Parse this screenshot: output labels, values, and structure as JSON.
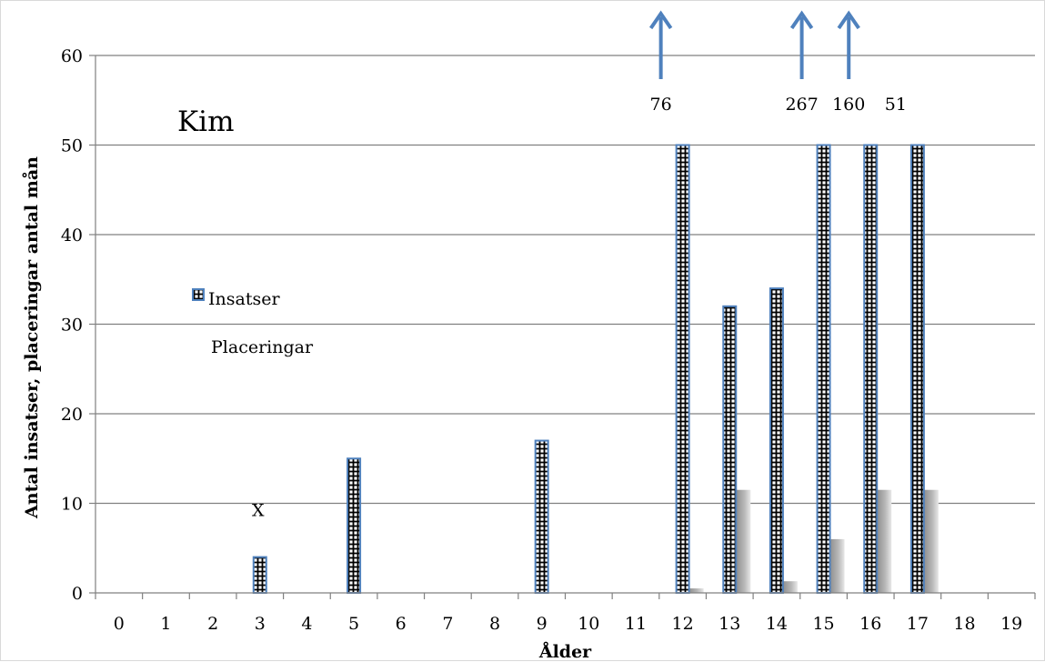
{
  "chart_data": {
    "type": "bar",
    "title": "Kim",
    "xlabel": "Ålder",
    "ylabel": "Antal insatser, placeringar antal mån",
    "x": [
      0,
      1,
      2,
      3,
      4,
      5,
      6,
      7,
      8,
      9,
      10,
      11,
      12,
      13,
      14,
      15,
      16,
      17,
      18,
      19
    ],
    "ylim": [
      0,
      60
    ],
    "yticks": [
      0,
      10,
      20,
      30,
      40,
      50,
      60
    ],
    "grid": true,
    "legend_position": "left",
    "series": [
      {
        "name": "Insatser",
        "style": "hatched",
        "values": [
          0,
          0,
          0,
          4,
          0,
          15,
          0,
          0,
          0,
          17,
          0,
          0,
          50,
          32,
          34,
          50,
          50,
          50,
          0,
          0
        ]
      },
      {
        "name": "Placeringar",
        "style": "shadow",
        "values": [
          0,
          0,
          0,
          0,
          0,
          0,
          0,
          0,
          0,
          0,
          0,
          0,
          0.5,
          11.5,
          1.3,
          6,
          11.5,
          11.5,
          0,
          0
        ]
      }
    ],
    "annotations": [
      {
        "text": "76",
        "x": 12,
        "arrow": true
      },
      {
        "text": "267",
        "x": 15,
        "arrow": true
      },
      {
        "text": "160",
        "x": 16,
        "arrow": true
      },
      {
        "text": "51",
        "x": 17,
        "arrow": false
      },
      {
        "text": "X",
        "x": 3,
        "y": 9
      }
    ]
  },
  "colors": {
    "bar_stroke": "#4f81bd",
    "grid": "#808080",
    "arrow": "#4f81bd",
    "shadow": "#9a9a9a"
  }
}
